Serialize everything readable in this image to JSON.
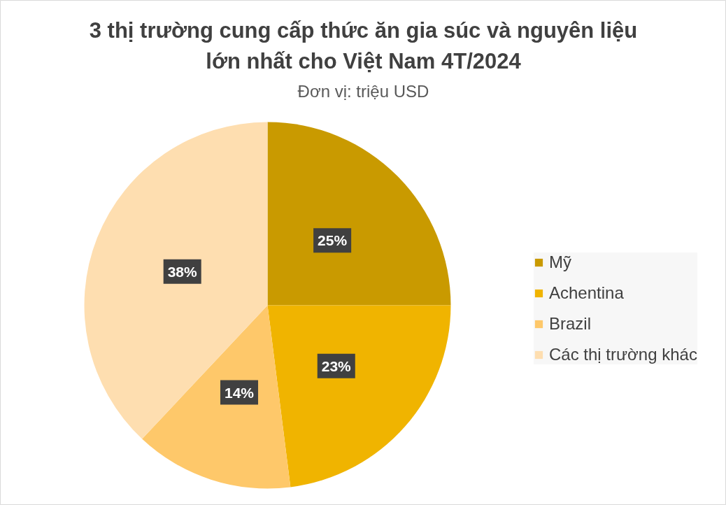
{
  "chart_data": {
    "type": "pie",
    "title": "3 thị trường cung cấp thức ăn gia súc và nguyên liệu lớn nhất cho Việt Nam 4T/2024",
    "subtitle": "Đơn vị: triệu USD",
    "categories": [
      "Mỹ",
      "Achentina",
      "Brazil",
      "Các thị trường khác"
    ],
    "values": [
      25,
      23,
      14,
      38
    ],
    "value_labels": [
      "25%",
      "23%",
      "14%",
      "38%"
    ],
    "colors": [
      "#c99a00",
      "#f0b400",
      "#fec86a",
      "#fedeb0"
    ],
    "legend": "right"
  }
}
